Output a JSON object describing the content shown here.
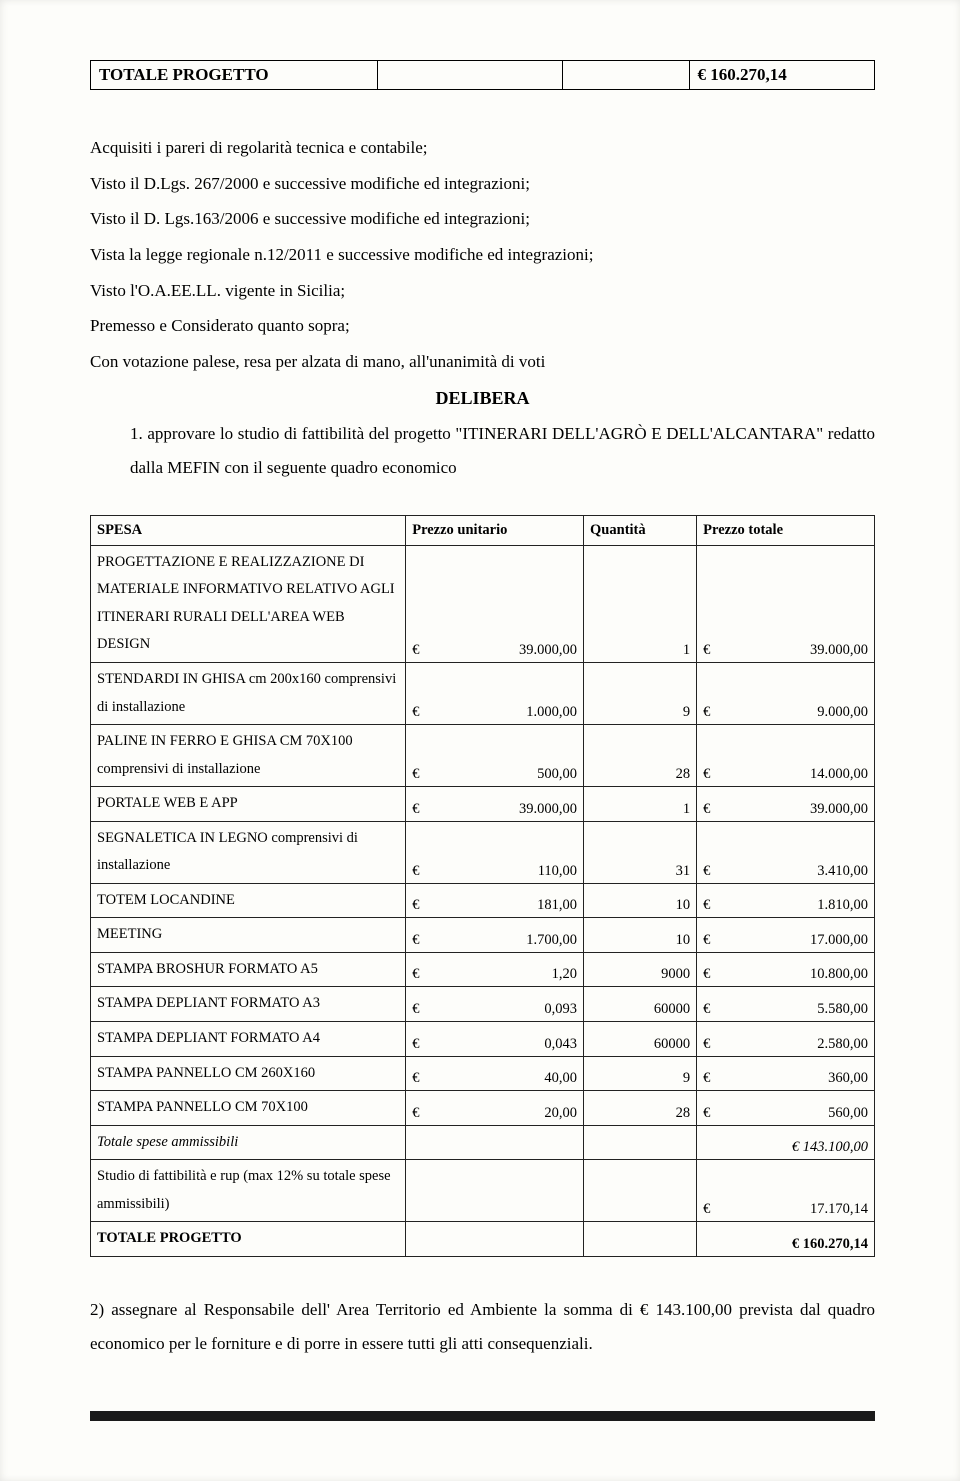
{
  "top_table": {
    "label": "TOTALE PROGETTO",
    "value": "€ 160.270,14"
  },
  "paragraphs": [
    "Acquisiti i pareri di regolarità tecnica e contabile;",
    "Visto il D.Lgs. 267/2000 e successive modifiche ed integrazioni;",
    "Visto il D. Lgs.163/2006 e successive modifiche ed integrazioni;",
    "Vista la legge regionale n.12/2011 e successive modifiche ed integrazioni;",
    "Visto l'O.A.EE.LL. vigente in Sicilia;",
    "Premesso e Considerato quanto sopra;",
    "Con votazione palese, resa per alzata di mano, all'unanimità di voti"
  ],
  "delibera_heading": "DELIBERA",
  "item1": "1.   approvare  lo  studio  di  fattibilità  del  progetto  \"ITINERARI  DELL'AGRÒ  E DELL'ALCANTARA\" redatto dalla MEFIN con il seguente quadro economico",
  "table": {
    "headers": {
      "spesa": "SPESA",
      "prezzo_unitario": "Prezzo unitario",
      "quantita": "Quantità",
      "prezzo_totale": "Prezzo totale"
    },
    "rows": [
      {
        "spesa": "PROGETTAZIONE E REALIZZAZIONE DI MATERIALE INFORMATIVO RELATIVO AGLI ITINERARI RURALI DELL'AREA WEB DESIGN",
        "pu": "39.000,00",
        "q": "1",
        "pt": "39.000,00"
      },
      {
        "spesa": "STENDARDI IN GHISA cm 200x160 comprensivi di installazione",
        "pu": "1.000,00",
        "q": "9",
        "pt": "9.000,00"
      },
      {
        "spesa": "PALINE IN FERRO E GHISA CM 70X100 comprensivi di installazione",
        "pu": "500,00",
        "q": "28",
        "pt": "14.000,00"
      },
      {
        "spesa": "PORTALE WEB E APP",
        "pu": "39.000,00",
        "q": "1",
        "pt": "39.000,00"
      },
      {
        "spesa": "SEGNALETICA IN LEGNO comprensivi di installazione",
        "pu": "110,00",
        "q": "31",
        "pt": "3.410,00"
      },
      {
        "spesa": "TOTEM LOCANDINE",
        "pu": "181,00",
        "q": "10",
        "pt": "1.810,00"
      },
      {
        "spesa": "MEETING",
        "pu": "1.700,00",
        "q": "10",
        "pt": "17.000,00"
      },
      {
        "spesa": "STAMPA BROSHUR FORMATO A5",
        "pu": "1,20",
        "q": "9000",
        "pt": "10.800,00"
      },
      {
        "spesa": "STAMPA DEPLIANT FORMATO A3",
        "pu": "0,093",
        "q": "60000",
        "pt": "5.580,00"
      },
      {
        "spesa": "STAMPA DEPLIANT FORMATO A4",
        "pu": "0,043",
        "q": "60000",
        "pt": "2.580,00"
      },
      {
        "spesa": "STAMPA PANNELLO CM 260X160",
        "pu": "40,00",
        "q": "9",
        "pt": "360,00"
      },
      {
        "spesa": "STAMPA PANNELLO CM 70X100",
        "pu": "20,00",
        "q": "28",
        "pt": "560,00"
      }
    ],
    "subtotal": {
      "label": "Totale spese ammissibili",
      "value": "€ 143.100,00"
    },
    "study": {
      "label": "Studio di fattibilità e rup (max 12% su totale spese ammissibili)",
      "value": "17.170,14"
    },
    "total": {
      "label": "TOTALE PROGETTO",
      "value": "€ 160.270,14"
    }
  },
  "closing": "2) assegnare al Responsabile dell' Area Territorio ed Ambiente la somma di € 143.100,00 prevista dal quadro economico per le forniture e di porre in essere tutti gli atti consequenziali.",
  "currency_symbol": "€"
}
